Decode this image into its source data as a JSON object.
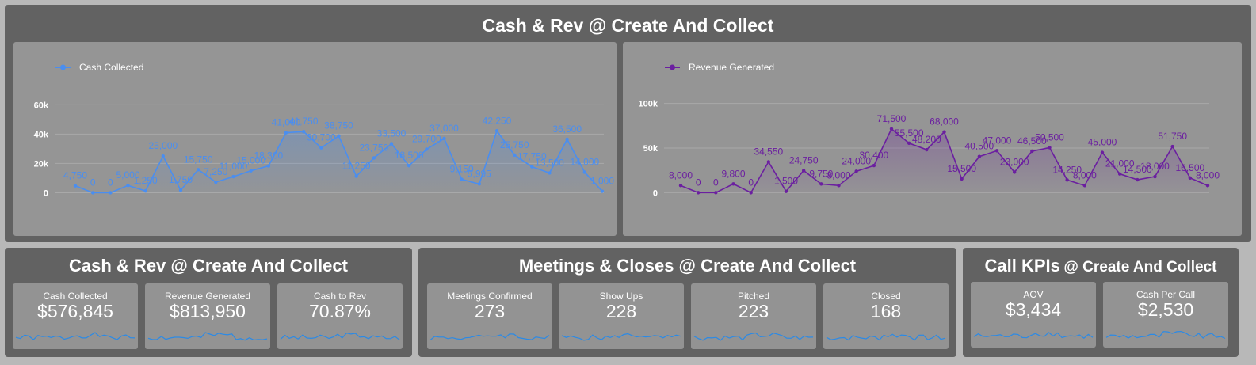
{
  "top_panel": {
    "title": "Cash & Rev @ Create And Collect"
  },
  "chart_data": [
    {
      "type": "line",
      "title": "",
      "legend": "top-left",
      "series": [
        {
          "name": "Cash Collected",
          "color": "#4a8ef0",
          "values": [
            4750,
            0,
            0,
            5000,
            1250,
            25000,
            1750,
            15750,
            7250,
            11000,
            15000,
            18300,
            41000,
            41750,
            30700,
            38750,
            11250,
            23750,
            33500,
            18500,
            29700,
            37000,
            9150,
            5995,
            42250,
            25750,
            17750,
            13500,
            36500,
            14000,
            1000
          ],
          "labels": [
            "4,750",
            "0",
            "0",
            "5,000",
            "1,250",
            "25,000",
            "1,750",
            "15,750",
            "7,250",
            "11,000",
            "15,000",
            "18,300",
            "41,000",
            "41,750",
            "30,700",
            "38,750",
            "11,250",
            "23,750",
            "33,500",
            "18,500",
            "29,700",
            "37,000",
            "9,150",
            "5,995",
            "42,250",
            "25,750",
            "17,750",
            "13,500",
            "36,500",
            "14,000",
            "1,000"
          ]
        }
      ],
      "y_ticks": [
        "0",
        "20k",
        "40k",
        "60k"
      ],
      "y_tick_values": [
        0,
        20000,
        40000,
        60000
      ],
      "ylim": [
        -3000,
        64000
      ],
      "grid": true
    },
    {
      "type": "line",
      "title": "",
      "legend": "top-left",
      "series": [
        {
          "name": "Revenue Generated",
          "color": "#6b1fa0",
          "values": [
            8000,
            0,
            0,
            9800,
            0,
            34550,
            1500,
            24750,
            9750,
            8000,
            24000,
            30400,
            71500,
            55500,
            48200,
            68000,
            15500,
            40500,
            47000,
            23000,
            46500,
            50500,
            14250,
            8000,
            45000,
            21000,
            14500,
            18000,
            51750,
            16500,
            8000
          ],
          "labels": [
            "8,000",
            "0",
            "0",
            "9,800",
            "0",
            "34,550",
            "1,500",
            "24,750",
            "9,750",
            "8,000",
            "24,000",
            "30,400",
            "71,500",
            "55,500",
            "48,200",
            "68,000",
            "15,500",
            "40,500",
            "47,000",
            "23,000",
            "46,500",
            "50,500",
            "14,250",
            "8,000",
            "45,000",
            "21,000",
            "14,500",
            "18,000",
            "51,750",
            "16,500",
            "8,000"
          ]
        }
      ],
      "y_ticks": [
        "0",
        "50k",
        "100k"
      ],
      "y_tick_values": [
        0,
        50000,
        100000
      ],
      "ylim": [
        -5000,
        105000
      ],
      "grid": true
    }
  ],
  "bottom_left": {
    "title": "Cash & Rev @ Create And Collect",
    "kpis": [
      {
        "label": "Cash Collected",
        "value": "$576,845"
      },
      {
        "label": "Revenue Generated",
        "value": "$813,950"
      },
      {
        "label": "Cash to Rev",
        "value": "70.87%"
      }
    ]
  },
  "bottom_mid": {
    "title": "Meetings & Closes @ Create And Collect",
    "kpis": [
      {
        "label": "Meetings Confirmed",
        "value": "273"
      },
      {
        "label": "Show Ups",
        "value": "228"
      },
      {
        "label": "Pitched",
        "value": "223"
      },
      {
        "label": "Closed",
        "value": "168"
      }
    ]
  },
  "bottom_right": {
    "title_main": "Call KPIs",
    "title_sub": "@ Create And Collect",
    "kpis": [
      {
        "label": "AOV",
        "value": "$3,434"
      },
      {
        "label": "Cash Per Call",
        "value": "$2,530"
      }
    ]
  },
  "colors": {
    "sparkline": "#2b8ae6",
    "panel": "#626262",
    "card": "#959595"
  }
}
